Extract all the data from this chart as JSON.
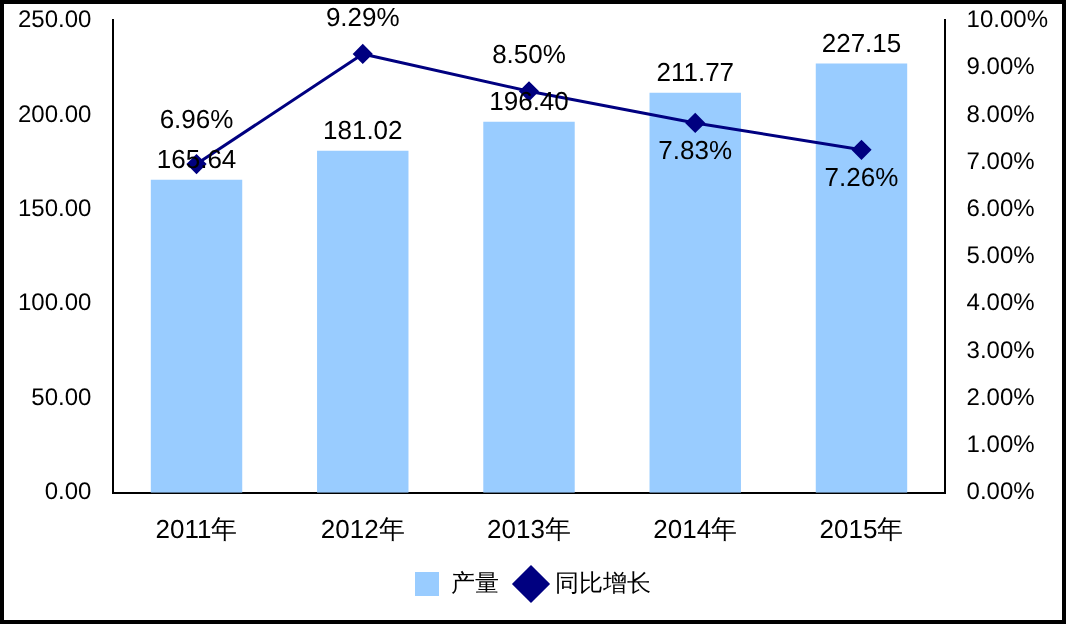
{
  "chart_data": {
    "type": "bar",
    "categories": [
      "2011年",
      "2012年",
      "2013年",
      "2014年",
      "2015年"
    ],
    "series": [
      {
        "name": "产量",
        "color": "#99ccff",
        "values": [
          165.64,
          181.02,
          196.4,
          211.77,
          227.15
        ]
      },
      {
        "name": "同比增长",
        "type": "line",
        "axis": "y2",
        "color": "#000080",
        "values": [
          6.96,
          9.29,
          8.5,
          7.83,
          7.26
        ]
      }
    ],
    "ylim": [
      0,
      250
    ],
    "yticks": [
      {
        "value": 0,
        "label": "0.00"
      },
      {
        "value": 50,
        "label": "50.00"
      },
      {
        "value": 100,
        "label": "100.00"
      },
      {
        "value": 150,
        "label": "150.00"
      },
      {
        "value": 200,
        "label": "200.00"
      },
      {
        "value": 250,
        "label": "250.00"
      }
    ],
    "y2lim": [
      0,
      10
    ],
    "y2ticks": [
      {
        "value": 0,
        "label": "0.00%"
      },
      {
        "value": 1,
        "label": "1.00%"
      },
      {
        "value": 2,
        "label": "2.00%"
      },
      {
        "value": 3,
        "label": "3.00%"
      },
      {
        "value": 4,
        "label": "4.00%"
      },
      {
        "value": 5,
        "label": "5.00%"
      },
      {
        "value": 6,
        "label": "6.00%"
      },
      {
        "value": 7,
        "label": "7.00%"
      },
      {
        "value": 8,
        "label": "8.00%"
      },
      {
        "value": 9,
        "label": "9.00%"
      },
      {
        "value": 10,
        "label": "10.00%"
      }
    ],
    "value_labels": [
      [
        "165.64",
        "181.02",
        "196.40",
        "211.77",
        "227.15"
      ],
      [
        "6.96%",
        "9.29%",
        "8.50%",
        "7.83%",
        "7.26%"
      ]
    ],
    "marker": "diamond",
    "line_style": "solid",
    "legend": "bottom",
    "grid": false
  }
}
